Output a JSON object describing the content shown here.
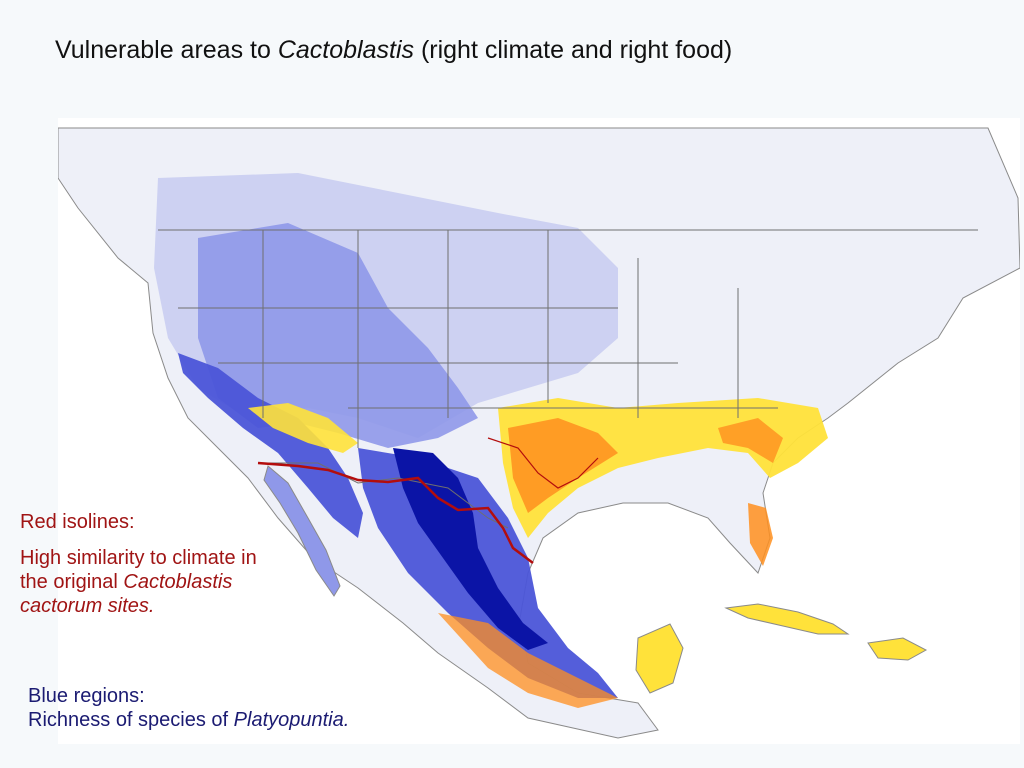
{
  "title": {
    "prefix": "Vulnerable areas to ",
    "italic": "Cactoblastis",
    "suffix": " (right climate and right food)"
  },
  "legend_red": {
    "heading": "Red isolines:",
    "line1": "High similarity to climate in",
    "line2_prefix": "the original ",
    "line2_italic": "Cactoblastis",
    "line3_italic": "cactorum sites."
  },
  "legend_blue": {
    "heading": "Blue regions:",
    "line_prefix": "Richness of species of ",
    "line_italic": "Platyopuntia."
  },
  "colors": {
    "background": "#f6f9fb",
    "map_background": "#ffffff",
    "land": "#eef0f8",
    "blue_light": "#c9cdf1",
    "blue_mid": "#8f98e9",
    "blue_rich": "#4b55d8",
    "blue_dark": "#0b14a6",
    "yellow": "#ffe23a",
    "orange": "#ff8f1f",
    "red_isoline": "#b30d0d",
    "border_line": "#6f6f6f",
    "red_text": "#a01414",
    "blue_text": "#1b1b72"
  }
}
